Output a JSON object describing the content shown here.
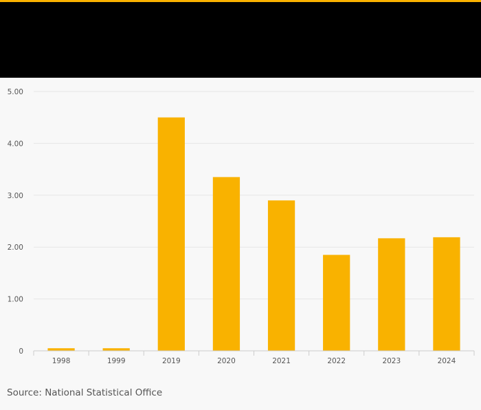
{
  "colors": {
    "accent": "#f9b200",
    "header": "#000000",
    "bar": "#f9b200",
    "grid": "#e6e6e6",
    "axis": "#cccccc",
    "tick_text": "#555555",
    "background": "#f8f8f8"
  },
  "source": "Source: National Statistical Office",
  "chart_data": {
    "type": "bar",
    "categories": [
      "1998",
      "1999",
      "2019",
      "2020",
      "2021",
      "2022",
      "2023",
      "2024"
    ],
    "values": [
      0.05,
      0.05,
      4.5,
      3.35,
      2.9,
      1.85,
      2.17,
      2.19
    ],
    "yticks": [
      0,
      1,
      2,
      3,
      4,
      5
    ],
    "ytick_labels": [
      "0",
      "1.00",
      "2.00",
      "3.00",
      "4.00",
      "5.00"
    ],
    "ylim": [
      0,
      5
    ],
    "grid": true,
    "title": "",
    "xlabel": "",
    "ylabel": ""
  }
}
